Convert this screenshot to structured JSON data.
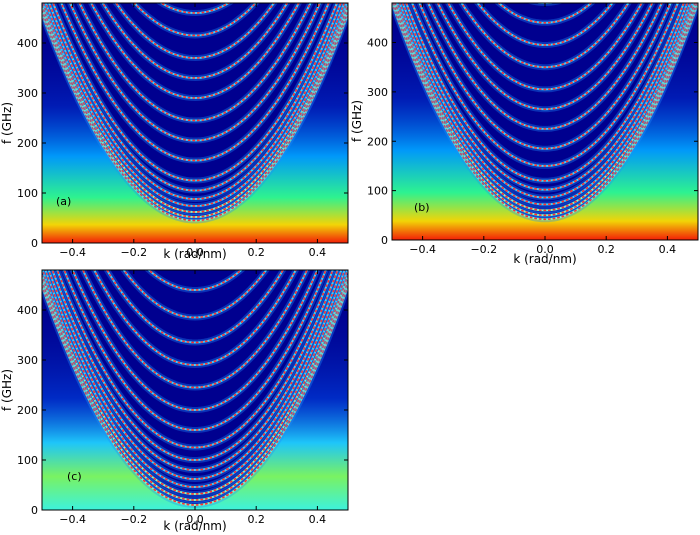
{
  "chart_data": [
    {
      "type": "heatmap",
      "panel_label": "(a)",
      "xlabel": "k (rad/nm)",
      "ylabel": "f (GHz)",
      "xlim": [
        -0.5,
        0.5
      ],
      "ylim": [
        0,
        480
      ],
      "xticks": [
        "−0.4",
        "−0.2",
        "0.0",
        "0.2",
        "0.4"
      ],
      "yticks": [
        "0",
        "100",
        "200",
        "300",
        "400"
      ],
      "xtick_values": [
        -0.4,
        -0.2,
        0.0,
        0.2,
        0.4
      ],
      "ytick_values": [
        0,
        100,
        200,
        300,
        400
      ],
      "colormap": "jet",
      "background_color": "#00008f",
      "marker_color": "#ff3030",
      "branches": {
        "f0_GHz": [
          45,
          52,
          62,
          74,
          88,
          105,
          125,
          165,
          205,
          245,
          290,
          330,
          370,
          415,
          460
        ],
        "curvature_GHz_per_rad2nm2": 1650
      }
    },
    {
      "type": "heatmap",
      "panel_label": "(b)",
      "xlabel": "k (rad/nm)",
      "ylabel": "f (GHz)",
      "xlim": [
        -0.5,
        0.5
      ],
      "ylim": [
        0,
        480
      ],
      "xticks": [
        "−0.4",
        "−0.2",
        "0.0",
        "0.2",
        "0.4"
      ],
      "yticks": [
        "0",
        "100",
        "200",
        "300",
        "400"
      ],
      "xtick_values": [
        -0.4,
        -0.2,
        0.0,
        0.2,
        0.4
      ],
      "ytick_values": [
        0,
        100,
        200,
        300,
        400
      ],
      "colormap": "jet",
      "background_color": "#00008f",
      "marker_color": "#ff3030",
      "branches": {
        "f0_GHz": [
          42,
          50,
          60,
          72,
          86,
          102,
          120,
          150,
          185,
          225,
          265,
          305,
          350,
          395,
          440,
          480
        ],
        "curvature_GHz_per_rad2nm2": 1750
      }
    },
    {
      "type": "heatmap",
      "panel_label": "(c)",
      "xlabel": "k (rad/nm)",
      "ylabel": "f (GHz)",
      "xlim": [
        -0.5,
        0.5
      ],
      "ylim": [
        0,
        480
      ],
      "xticks": [
        "−0.4",
        "−0.2",
        "0.0",
        "0.2",
        "0.4"
      ],
      "yticks": [
        "0",
        "100",
        "200",
        "300",
        "400"
      ],
      "xtick_values": [
        -0.4,
        -0.2,
        0.0,
        0.2,
        0.4
      ],
      "ytick_values": [
        0,
        100,
        200,
        300,
        400
      ],
      "colormap": "jet",
      "background_color": "#00008f",
      "marker_color": "#ff3030",
      "branches": {
        "f0_GHz": [
          10,
          20,
          32,
          46,
          62,
          80,
          100,
          125,
          160,
          200,
          245,
          290,
          335,
          385,
          440
        ],
        "curvature_GHz_per_rad2nm2": 1750
      }
    }
  ]
}
